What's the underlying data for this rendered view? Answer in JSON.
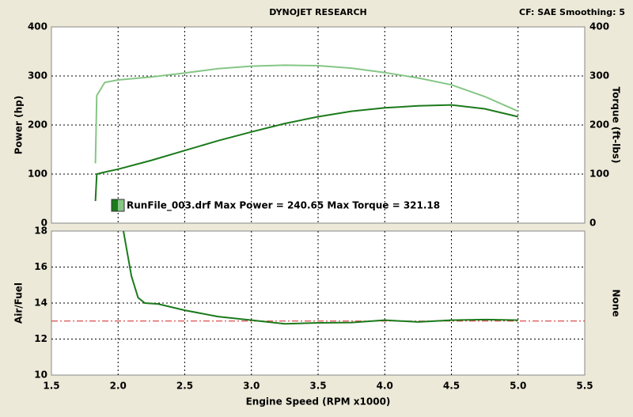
{
  "header": {
    "title": "DYNOJET RESEARCH",
    "settings": "CF: SAE  Smoothing: 5"
  },
  "chart_data": [
    {
      "type": "line",
      "ylabel": "Power (hp)",
      "y2label": "Torque (ft-lbs)",
      "legend_text": "RunFile_003.drf Max Power = 240.65 Max Torque = 321.18",
      "x": [
        1.83,
        1.84,
        1.9,
        2.0,
        2.25,
        2.5,
        2.75,
        3.0,
        3.25,
        3.5,
        3.75,
        4.0,
        4.25,
        4.5,
        4.75,
        5.0
      ],
      "series": [
        {
          "color": "#1b7a1b",
          "values": [
            45,
            100,
            104,
            110,
            128,
            148,
            168,
            186,
            203,
            217,
            228,
            235,
            239,
            241,
            233,
            217
          ]
        },
        {
          "color": "#86c686",
          "axis": "y2",
          "values": [
            122,
            260,
            287,
            292,
            298,
            306,
            315,
            320,
            322,
            321,
            316,
            307,
            296,
            282,
            258,
            228
          ]
        }
      ],
      "xlim": [
        1.5,
        5.5
      ],
      "ylim": [
        0,
        400
      ],
      "yticks": [
        0,
        100,
        200,
        300,
        400
      ],
      "y2lim": [
        0,
        400
      ],
      "y2ticks": [
        0,
        100,
        200,
        300,
        400
      ],
      "grid": true
    },
    {
      "type": "line",
      "ylabel": "Air/Fuel",
      "y2label": "None",
      "xlabel": "Engine Speed (RPM x1000)",
      "x": [
        2.04,
        2.1,
        2.15,
        2.2,
        2.3,
        2.5,
        2.75,
        3.0,
        3.25,
        3.5,
        3.75,
        4.0,
        4.25,
        4.5,
        4.75,
        5.0
      ],
      "series": [
        {
          "color": "#1b7a1b",
          "values": [
            18,
            15.5,
            14.3,
            14.0,
            13.95,
            13.6,
            13.25,
            13.05,
            12.85,
            12.9,
            12.92,
            13.05,
            12.95,
            13.05,
            13.08,
            13.05
          ]
        }
      ],
      "reference_line": {
        "value": 13,
        "color": "#d02020"
      },
      "xlim": [
        1.5,
        5.5
      ],
      "xticks": [
        1.5,
        {
          "value": 2,
          "label": "2.0"
        },
        2.5,
        {
          "value": 3,
          "label": "3.0"
        },
        3.5,
        {
          "value": 4,
          "label": "4.0"
        },
        4.5,
        {
          "value": 5,
          "label": "5.0"
        },
        5.5
      ],
      "ylim": [
        10,
        18
      ],
      "yticks": [
        10,
        12,
        14,
        16,
        18
      ],
      "grid": true
    }
  ]
}
